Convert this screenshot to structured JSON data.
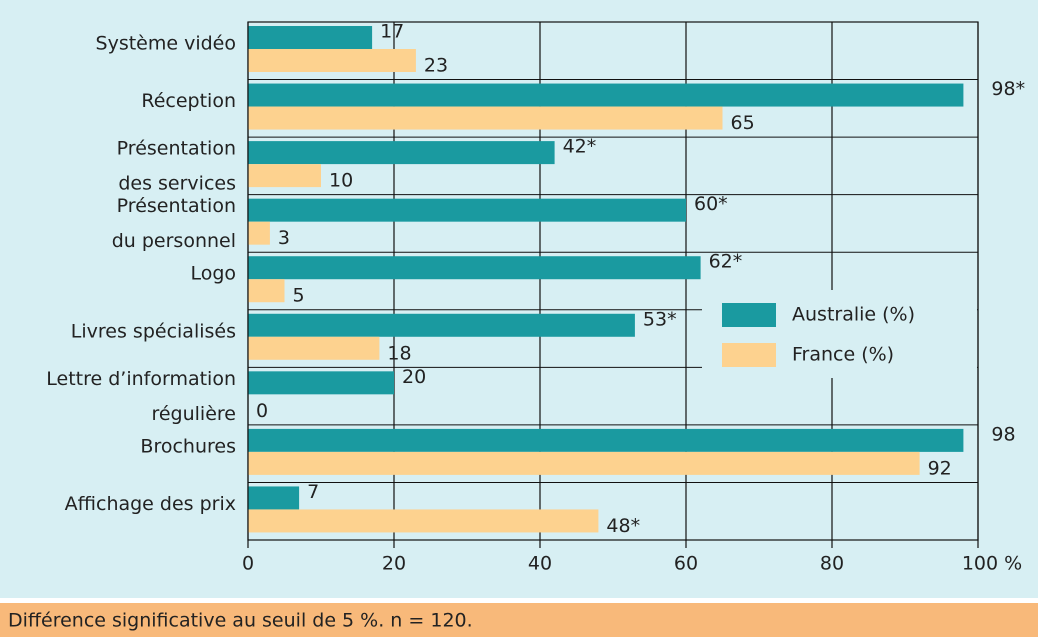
{
  "chart_data": {
    "type": "hbar",
    "categories": [
      [
        "Système vidéo"
      ],
      [
        "Réception"
      ],
      [
        "Présentation",
        "des services"
      ],
      [
        "Présentation",
        "du personnel"
      ],
      [
        "Logo"
      ],
      [
        "Livres spécialisés"
      ],
      [
        "Lettre d’information",
        "régulière"
      ],
      [
        "Brochures"
      ],
      [
        "Affichage des prix"
      ]
    ],
    "series": [
      {
        "name": "Australie (%)",
        "color": "#1a9aa0",
        "values": [
          17,
          98,
          42,
          60,
          62,
          53,
          20,
          98,
          7
        ],
        "value_labels": [
          "17",
          "98*",
          "42*",
          "60*",
          "62*",
          "53*",
          "20",
          "98",
          "7"
        ]
      },
      {
        "name": "France (%)",
        "color": "#fdd28f",
        "values": [
          23,
          65,
          10,
          3,
          5,
          18,
          0,
          92,
          48
        ],
        "value_labels": [
          "23",
          "65",
          "10",
          "3",
          "5",
          "18",
          "0",
          "92",
          "48*"
        ]
      }
    ],
    "xlim": [
      0,
      100
    ],
    "xticks": [
      0,
      20,
      40,
      60,
      80,
      {
        "value": 100,
        "label": "100 %"
      }
    ],
    "grid": true,
    "legend": "center-right",
    "footnote": "Différence significative au seuil de 5 %. n = 120."
  }
}
